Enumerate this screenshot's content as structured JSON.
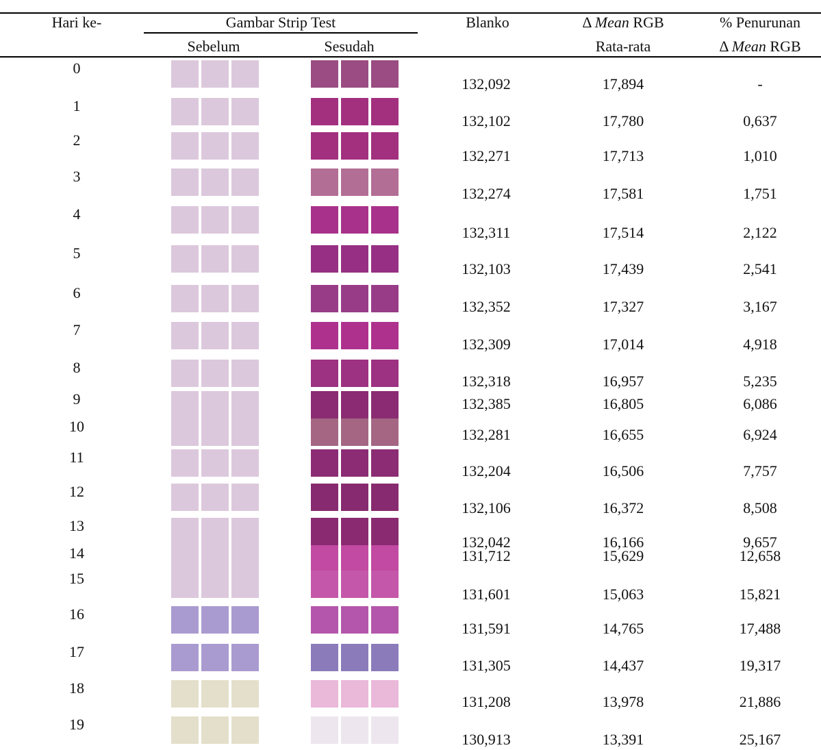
{
  "header": {
    "day": "Hari ke-",
    "strip": "Gambar Strip Test",
    "before": "Sebelum",
    "after": "Sesudah",
    "blanko": "Blanko",
    "delta": {
      "symbol": "Δ",
      "italic": "Mean",
      "unit": "RGB"
    },
    "delta_sub": "Rata-rata",
    "pct": "% Penurunan",
    "pct_sub": {
      "symbol": "Δ",
      "italic": "Mean",
      "unit": "RGB"
    }
  },
  "table": {
    "rows": [
      {
        "day": "0",
        "blanko": "132,092",
        "delta": "17,894",
        "pct": "-"
      },
      {
        "day": "1",
        "blanko": "132,102",
        "delta": "17,780",
        "pct": "0,637"
      },
      {
        "day": "2",
        "blanko": "132,271",
        "delta": "17,713",
        "pct": "1,010"
      },
      {
        "day": "3",
        "blanko": "132,274",
        "delta": "17,581",
        "pct": "1,751"
      },
      {
        "day": "4",
        "blanko": "132,311",
        "delta": "17,514",
        "pct": "2,122"
      },
      {
        "day": "5",
        "blanko": "132,103",
        "delta": "17,439",
        "pct": "2,541"
      },
      {
        "day": "6",
        "blanko": "132,352",
        "delta": "17,327",
        "pct": "3,167"
      },
      {
        "day": "7",
        "blanko": "132,309",
        "delta": "17,014",
        "pct": "4,918"
      },
      {
        "day": "8",
        "blanko": "132,318",
        "delta": "16,957",
        "pct": "5,235"
      },
      {
        "day": "9",
        "blanko": "132,385",
        "delta": "16,805",
        "pct": "6,086"
      },
      {
        "day": "10",
        "blanko": "132,281",
        "delta": "16,655",
        "pct": "6,924"
      },
      {
        "day": "11",
        "blanko": "132,204",
        "delta": "16,506",
        "pct": "7,757"
      },
      {
        "day": "12",
        "blanko": "132,106",
        "delta": "16,372",
        "pct": "8,508"
      },
      {
        "day": "13",
        "blanko": "132,042",
        "delta": "16,166",
        "pct": "9,657"
      },
      {
        "day": "14",
        "blanko": "131,712",
        "delta": "15,629",
        "pct": "12,658"
      },
      {
        "day": "15",
        "blanko": "131,601",
        "delta": "15,063",
        "pct": "15,821"
      },
      {
        "day": "16",
        "blanko": "131,591",
        "delta": "14,765",
        "pct": "17,488"
      },
      {
        "day": "17",
        "blanko": "131,305",
        "delta": "14,437",
        "pct": "19,317"
      },
      {
        "day": "18",
        "blanko": "131,208",
        "delta": "13,978",
        "pct": "21,886"
      },
      {
        "day": "19",
        "blanko": "130,913",
        "delta": "13,391",
        "pct": "25,167"
      }
    ]
  }
}
